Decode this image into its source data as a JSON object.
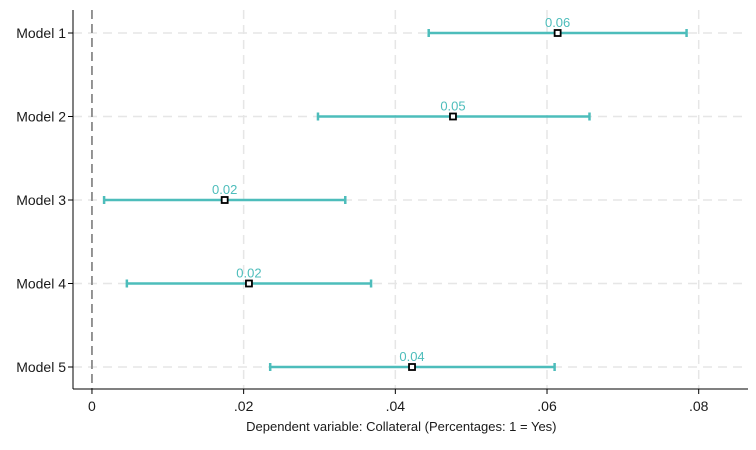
{
  "chart_data": {
    "type": "scatter",
    "subtype": "coefficient-plot",
    "title": "",
    "xlabel": "Dependent variable: Collateral (Percentages: 1 = Yes)",
    "ylabel": "",
    "xlim": [
      -0.0025,
      0.0865
    ],
    "x_ticks": [
      0,
      0.02,
      0.04,
      0.06,
      0.08
    ],
    "x_tick_labels": [
      "0",
      ".02",
      ".04",
      ".06",
      ".08"
    ],
    "categories": [
      "Model 1",
      "Model 2",
      "Model 3",
      "Model 4",
      "Model 5"
    ],
    "estimates": [
      0.0614,
      0.0476,
      0.0175,
      0.0207,
      0.0422
    ],
    "ci_lower": [
      0.0444,
      0.0298,
      0.0016,
      0.0046,
      0.0235
    ],
    "ci_upper": [
      0.0784,
      0.0656,
      0.0334,
      0.0368,
      0.061
    ],
    "data_labels": [
      "0.06",
      "0.05",
      "0.02",
      "0.02",
      "0.04"
    ],
    "reference_line": 0,
    "grid": true,
    "legend": "none",
    "colors": {
      "ci": "#4dbdbb",
      "marker": "#000000",
      "label": "#4dbdbb",
      "reference": "#8a8a8a",
      "grid": "#e6e6e6",
      "axis": "#000000"
    }
  }
}
